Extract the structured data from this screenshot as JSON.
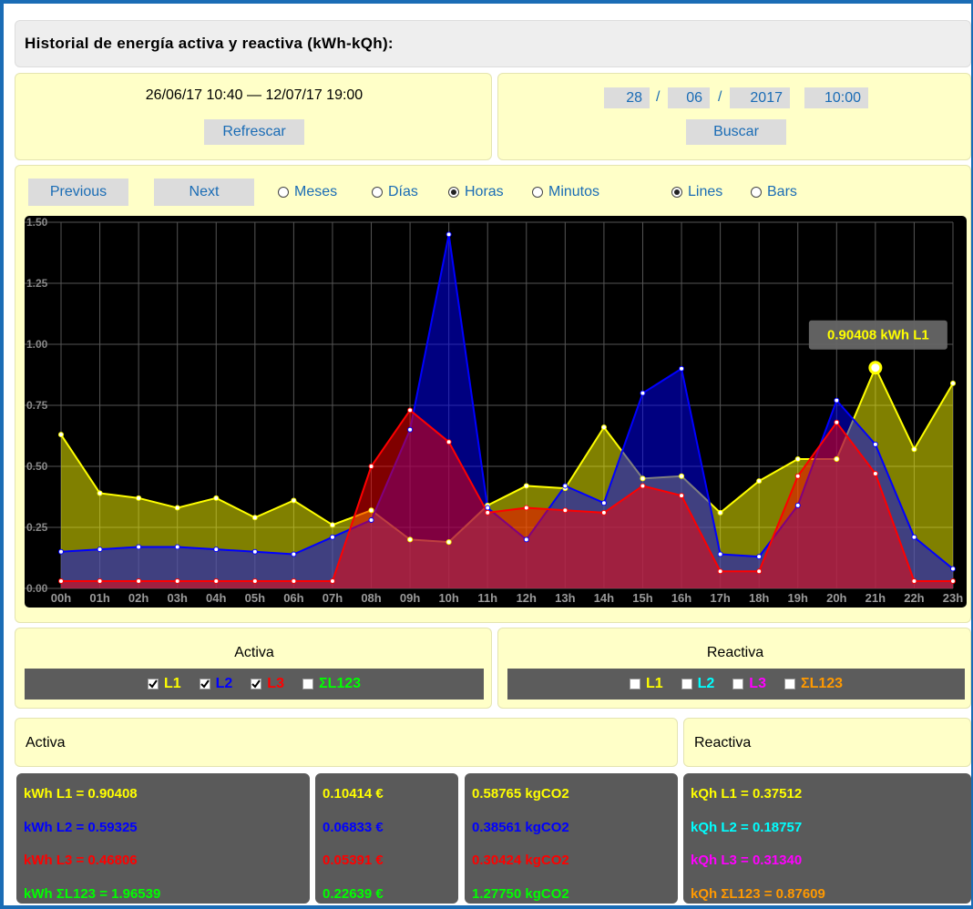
{
  "header": {
    "title": "Historial de energía activa y reactiva (kWh-kQh):"
  },
  "range_panel": {
    "range_text": "26/06/17 10:40 — 12/07/17 19:00",
    "button": "Refrescar"
  },
  "search_panel": {
    "day": "28",
    "month": "06",
    "year": "2017",
    "time": "10:00",
    "separator": "/",
    "button": "Buscar"
  },
  "controls": {
    "previous": "Previous",
    "next": "Next",
    "periods": [
      "Meses",
      "Días",
      "Horas",
      "Minutos"
    ],
    "selected_period": 2,
    "modes": [
      "Lines",
      "Bars"
    ],
    "selected_mode": 0
  },
  "chart_data": {
    "type": "area",
    "categories": [
      "00h",
      "01h",
      "02h",
      "03h",
      "04h",
      "05h",
      "06h",
      "07h",
      "08h",
      "09h",
      "10h",
      "11h",
      "12h",
      "13h",
      "14h",
      "15h",
      "16h",
      "17h",
      "18h",
      "19h",
      "20h",
      "21h",
      "22h",
      "23h"
    ],
    "series": [
      {
        "name": "L1",
        "color": "#ffff00",
        "values": [
          0.63,
          0.39,
          0.37,
          0.33,
          0.37,
          0.29,
          0.36,
          0.26,
          0.32,
          0.2,
          0.19,
          0.34,
          0.42,
          0.41,
          0.66,
          0.45,
          0.46,
          0.31,
          0.44,
          0.53,
          0.53,
          0.90408,
          0.57,
          0.84
        ]
      },
      {
        "name": "L2",
        "color": "#0000ff",
        "values": [
          0.15,
          0.16,
          0.17,
          0.17,
          0.16,
          0.15,
          0.14,
          0.21,
          0.28,
          0.65,
          1.45,
          0.33,
          0.2,
          0.42,
          0.35,
          0.8,
          0.9,
          0.14,
          0.13,
          0.34,
          0.77,
          0.59,
          0.21,
          0.08
        ]
      },
      {
        "name": "L3",
        "color": "#ff0000",
        "values": [
          0.03,
          0.03,
          0.03,
          0.03,
          0.03,
          0.03,
          0.03,
          0.03,
          0.5,
          0.73,
          0.6,
          0.31,
          0.33,
          0.32,
          0.31,
          0.42,
          0.38,
          0.07,
          0.07,
          0.46,
          0.68,
          0.47,
          0.03,
          0.03
        ]
      }
    ],
    "ylim": [
      0,
      1.5
    ],
    "yticks": [
      {
        "value": 0,
        "label": "0.00"
      },
      0.25,
      {
        "value": 0.5,
        "label": "0.50"
      },
      0.75,
      {
        "value": 1,
        "label": "1.00"
      },
      1.25,
      {
        "value": 1.5,
        "label": "1.50"
      }
    ],
    "grid": true,
    "annotation": "0.90408 kWh L1"
  },
  "legend_active": {
    "title": "Activa",
    "items": [
      {
        "label": "L1",
        "checked": true,
        "color": "#ffff00"
      },
      {
        "label": "L2",
        "checked": true,
        "color": "#0000ff"
      },
      {
        "label": "L3",
        "checked": true,
        "color": "#ff0000"
      },
      {
        "label": "ΣL123",
        "checked": false,
        "color": "#00ff00"
      }
    ]
  },
  "legend_reactive": {
    "title": "Reactiva",
    "items": [
      {
        "label": "L1",
        "checked": false,
        "color": "#ffff00"
      },
      {
        "label": "L2",
        "checked": false,
        "color": "#00ffff"
      },
      {
        "label": "L3",
        "checked": false,
        "color": "#ff00ff"
      },
      {
        "label": "ΣL123",
        "checked": false,
        "color": "#ff9900"
      }
    ]
  },
  "summary": {
    "active_title": "Activa",
    "reactive_title": "Reactiva",
    "rows": [
      {
        "color": "#ffff00",
        "kwh": "kWh L1 = 0.90408",
        "cost": "0.10414 €",
        "co2": "0.58765 kgCO2"
      },
      {
        "color": "#0000ff",
        "kwh": "kWh L2 = 0.59325",
        "cost": "0.06833 €",
        "co2": "0.38561 kgCO2"
      },
      {
        "color": "#ff0000",
        "kwh": "kWh L3 = 0.46806",
        "cost": "0.05391 €",
        "co2": "0.30424 kgCO2"
      },
      {
        "color": "#00ff00",
        "kwh": "kWh ΣL123 = 1.96539",
        "cost": "0.22639 €",
        "co2": "1.27750 kgCO2"
      }
    ],
    "reactive_rows": [
      {
        "color": "#ffff00",
        "text": "kQh L1 = 0.37512"
      },
      {
        "color": "#00ffff",
        "text": "kQh L2 = 0.18757"
      },
      {
        "color": "#ff00ff",
        "text": "kQh L3 = 0.31340"
      },
      {
        "color": "#ff9900",
        "text": "kQh ΣL123 = 0.87609"
      }
    ]
  }
}
